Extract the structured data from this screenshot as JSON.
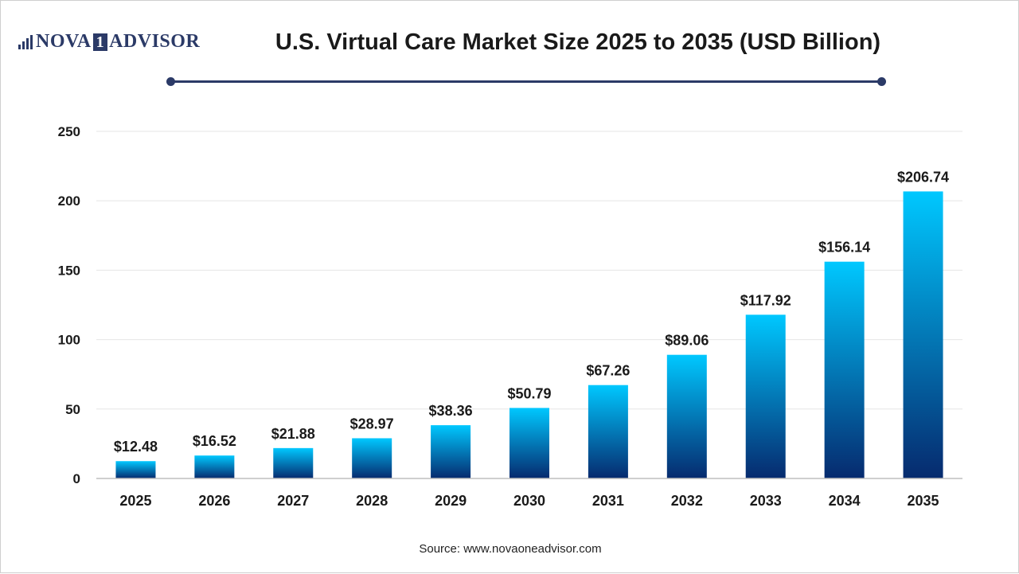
{
  "header": {
    "logo_left": "NOVA",
    "logo_box": "1",
    "logo_right": "ADVISOR",
    "title": "U.S. Virtual Care Market Size 2025 to 2035 (USD Billion)"
  },
  "footer": {
    "source": "Source: www.novaoneadvisor.com"
  },
  "colors": {
    "bar_top": "#00c8ff",
    "bar_bottom": "#062a6e",
    "accent": "#2b3a67",
    "grid": "#e6e6e6"
  },
  "chart_data": {
    "type": "bar",
    "categories": [
      "2025",
      "2026",
      "2027",
      "2028",
      "2029",
      "2030",
      "2031",
      "2032",
      "2033",
      "2034",
      "2035"
    ],
    "values": [
      12.48,
      16.52,
      21.88,
      28.97,
      38.36,
      50.79,
      67.26,
      89.06,
      117.92,
      156.14,
      206.74
    ],
    "value_labels": [
      "$12.48",
      "$16.52",
      "$21.88",
      "$28.97",
      "$38.36",
      "$50.79",
      "$67.26",
      "$89.06",
      "$117.92",
      "$156.14",
      "$206.74"
    ],
    "title": "U.S. Virtual Care Market Size 2025 to 2035 (USD Billion)",
    "xlabel": "",
    "ylabel": "",
    "ylim": [
      0,
      250
    ],
    "yticks": [
      0,
      50,
      100,
      150,
      200,
      250
    ],
    "grid": true,
    "legend": "none"
  }
}
